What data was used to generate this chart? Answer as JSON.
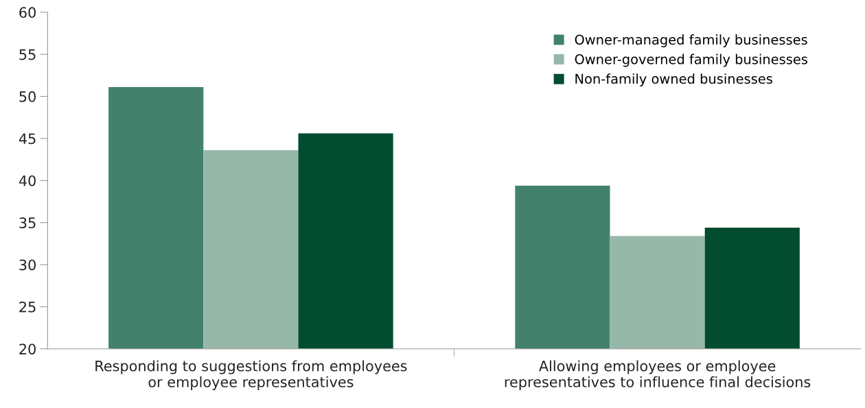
{
  "chart_data": {
    "type": "bar",
    "categories": [
      "Responding to suggestions from employees\nor employee representatives",
      "Allowing employees or employee\nrepresentatives to influence final decisions"
    ],
    "series": [
      {
        "name": "Owner-managed family businesses",
        "color": "#42826c",
        "values": [
          51.1,
          39.4
        ]
      },
      {
        "name": "Owner-governed family businesses",
        "color": "#96b8a8",
        "values": [
          43.6,
          33.4
        ]
      },
      {
        "name": "Non-family owned businesses",
        "color": "#024d30",
        "values": [
          45.6,
          34.4
        ]
      }
    ],
    "ylim": [
      20,
      60
    ],
    "yticks": [
      20,
      25,
      30,
      35,
      40,
      45,
      50,
      55,
      60
    ],
    "grid": false,
    "legend": "top right"
  }
}
